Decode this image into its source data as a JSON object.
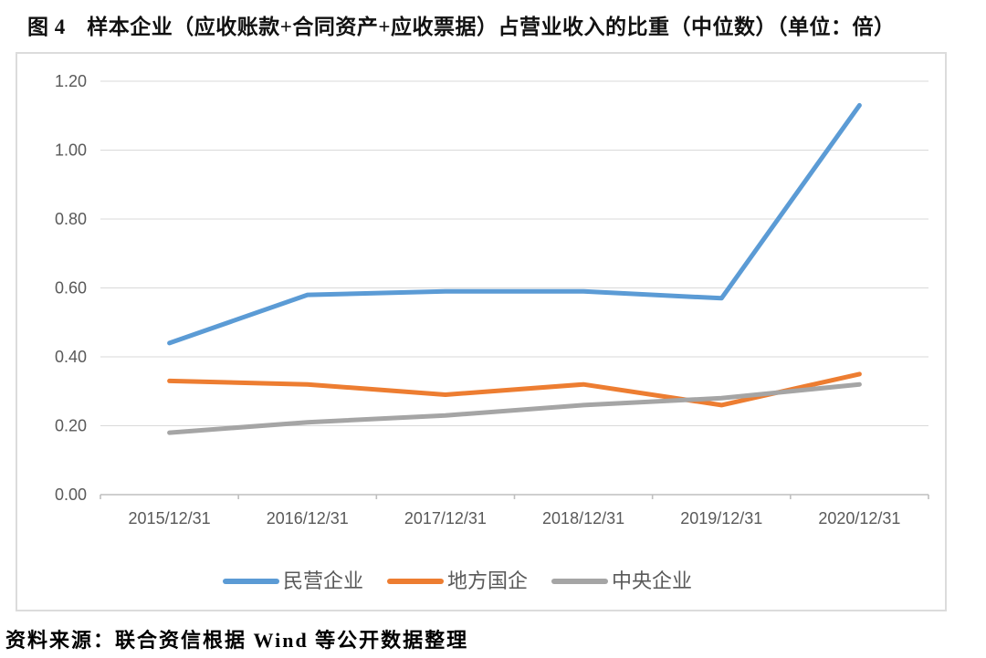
{
  "header": {
    "title": "图 4　样本企业（应收账款+合同资产+应收票据）占营业收入的比重（中位数）（单位：倍）"
  },
  "chart_data": {
    "type": "line",
    "title": "样本企业（应收账款+合同资产+应收票据）占营业收入的比重（中位数）（单位：倍）",
    "categories": [
      "2015/12/31",
      "2016/12/31",
      "2017/12/31",
      "2018/12/31",
      "2019/12/31",
      "2020/12/31"
    ],
    "series": [
      {
        "name": "民营企业",
        "color": "#5B9BD5",
        "values": [
          0.44,
          0.58,
          0.59,
          0.59,
          0.57,
          1.13
        ]
      },
      {
        "name": "地方国企",
        "color": "#ED7D31",
        "values": [
          0.33,
          0.32,
          0.29,
          0.32,
          0.26,
          0.35
        ]
      },
      {
        "name": "中央企业",
        "color": "#A5A5A5",
        "values": [
          0.18,
          0.21,
          0.23,
          0.26,
          0.28,
          0.32
        ]
      }
    ],
    "xlabel": "",
    "ylabel": "",
    "ylim": [
      0,
      1.2
    ],
    "ytick_step": 0.2,
    "ytick_labels": [
      "0.00",
      "0.20",
      "0.40",
      "0.60",
      "0.80",
      "1.00",
      "1.20"
    ],
    "grid": true,
    "grid_color": "#D9D9D9",
    "axis_line_color": "#BFBFBF",
    "tick_text_color": "#595959",
    "legend_position": "bottom"
  },
  "footer": {
    "source": "资料来源：联合资信根据 Wind 等公开数据整理"
  }
}
